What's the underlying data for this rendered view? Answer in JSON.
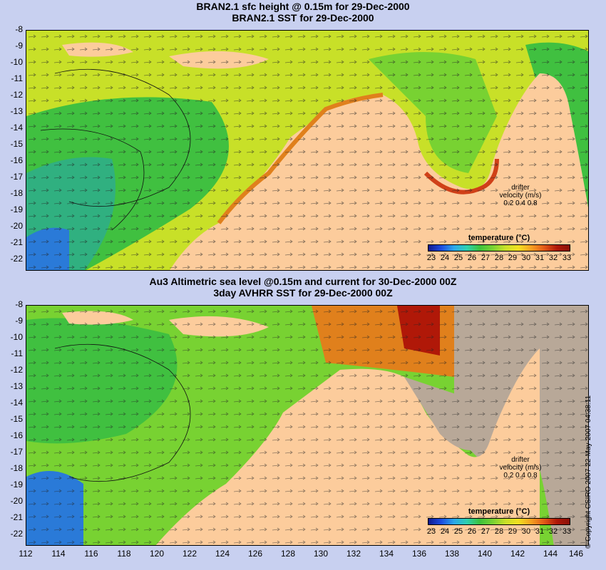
{
  "top_panel": {
    "title_line1": "BRAN2.1 sfc height @ 0.15m for 29-Dec-2000",
    "title_line2": "BRAN2.1 SST for 29-Dec-2000"
  },
  "bottom_panel": {
    "title_line1": "Au3 Altimetric sea level  @0.15m and current for 30-Dec-2000 00Z",
    "title_line2": "3day AVHRR SST for 29-Dec-2000 00Z"
  },
  "latitude_ticks": [
    "-8",
    "-9",
    "-10",
    "-11",
    "-12",
    "-13",
    "-14",
    "-15",
    "-16",
    "-17",
    "-18",
    "-19",
    "-20",
    "-21",
    "-22"
  ],
  "longitude_ticks": [
    "112",
    "114",
    "116",
    "118",
    "120",
    "122",
    "124",
    "126",
    "128",
    "130",
    "132",
    "134",
    "136",
    "138",
    "140",
    "142",
    "144",
    "146"
  ],
  "colorbar": {
    "title": "temperature (°C)",
    "labels": [
      "23",
      "24",
      "25",
      "26",
      "27",
      "28",
      "29",
      "30",
      "31",
      "32",
      "33"
    ]
  },
  "drifter_legend": {
    "line1": "drifter",
    "line2": "velocity (m/s)",
    "line3": "0.2  0.4  0.8"
  },
  "copyright": "© Copyright CSIRO 2007  22-May-2007 04:38:11",
  "colors": {
    "land": "#fccc9c",
    "dry_land_brown": "#b8a898",
    "warm_sea": "#e0d820",
    "cool_sea": "#40c040"
  }
}
